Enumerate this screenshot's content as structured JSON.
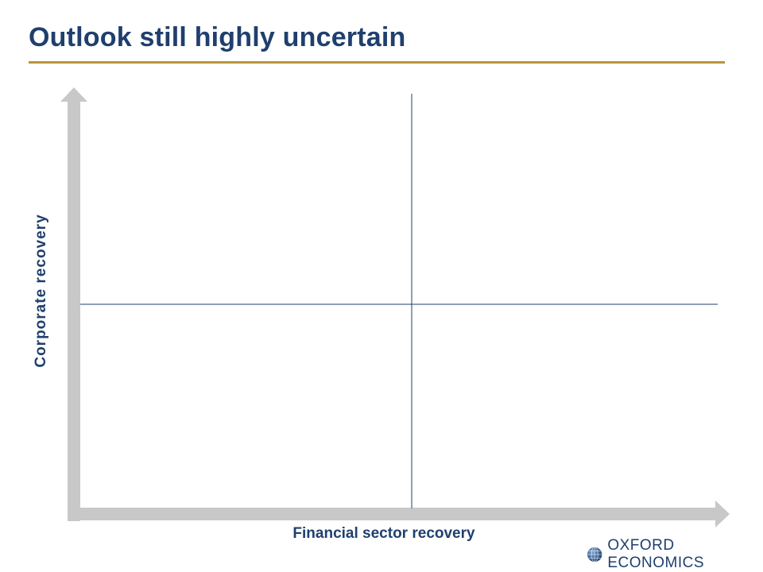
{
  "slide": {
    "title": "Outlook still highly uncertain"
  },
  "diagram": {
    "type": "quadrant",
    "x_axis_label": "Financial sector recovery",
    "y_axis_label": "Corporate recovery"
  },
  "logo": {
    "text": "OXFORD ECONOMICS"
  },
  "colors": {
    "title": "#1f3f6e",
    "rule": "#b8953a",
    "axis_arrow": "#c8c8c8",
    "divider": "#1f3f6e"
  }
}
